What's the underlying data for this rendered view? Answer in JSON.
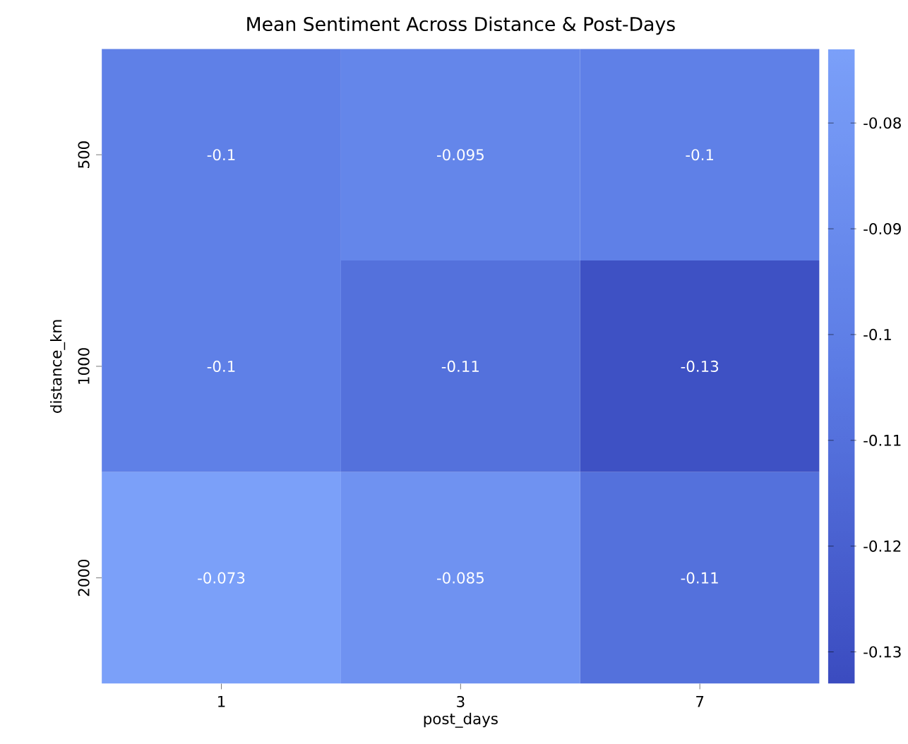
{
  "chart_data": {
    "type": "heatmap",
    "title": "Mean Sentiment Across Distance & Post-Days",
    "xlabel": "post_days",
    "ylabel": "distance_km",
    "categories": [
      "1",
      "3",
      "7"
    ],
    "y_categories": [
      "500",
      "1000",
      "2000"
    ],
    "cells": [
      [
        -0.1,
        -0.095,
        -0.1
      ],
      [
        -0.1,
        -0.11,
        -0.13
      ],
      [
        -0.073,
        -0.085,
        -0.11
      ]
    ],
    "data_labels": true,
    "clim": [
      -0.133,
      -0.073
    ],
    "cticks": [
      -0.13,
      -0.12,
      -0.11,
      -0.1,
      -0.09,
      -0.08
    ]
  }
}
